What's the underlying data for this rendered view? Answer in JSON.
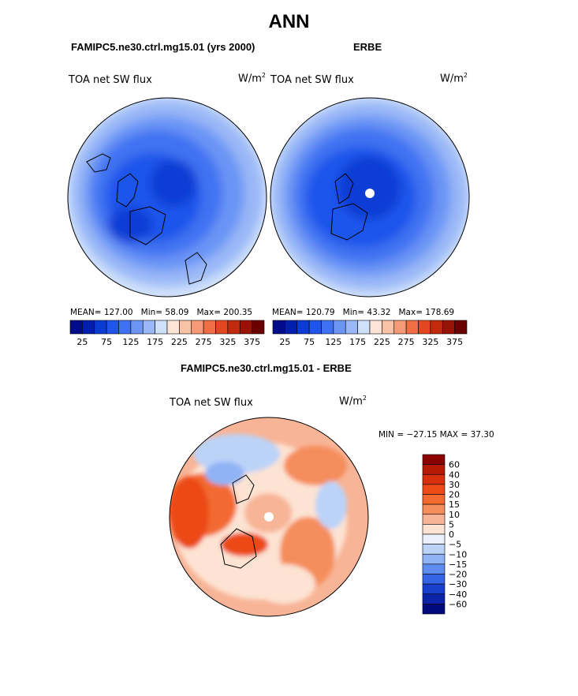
{
  "page_title": "ANN",
  "colors": {
    "ocean_base": "#7fa8f0",
    "land_line": "#000000",
    "diff_warm": "#f0703a",
    "diff_cool": "#a9c8f6"
  },
  "chart_data": [
    {
      "type": "heatmap",
      "projection": "north-polar-stereographic",
      "title": "FAMIPC5.ne30.ctrl.mg15.01 (yrs 2000)",
      "variable": "TOA net SW flux",
      "units": "W/m",
      "units_superscript": "2",
      "stats": {
        "mean_label": "MEAN=",
        "mean": "127.00",
        "min_label": "Min=",
        "min": "58.09",
        "max_label": "Max=",
        "max": "200.35"
      },
      "colorbar": {
        "levels": [
          25,
          50,
          75,
          100,
          125,
          150,
          175,
          200,
          225,
          250,
          275,
          300,
          325,
          350,
          375
        ],
        "tick_labels": [
          "25",
          "75",
          "125",
          "175",
          "225",
          "275",
          "325",
          "375"
        ],
        "colors": [
          "#000c8a",
          "#001fb0",
          "#0a3cd4",
          "#1f55ea",
          "#3f72f2",
          "#6b94f5",
          "#9ab8f7",
          "#cfe0fb",
          "#fde4d6",
          "#f9c1a6",
          "#f59a77",
          "#ef6e45",
          "#e4471f",
          "#c22a0e",
          "#9a1205",
          "#6b0000"
        ]
      }
    },
    {
      "type": "heatmap",
      "projection": "north-polar-stereographic",
      "title": "ERBE",
      "variable": "TOA net SW flux",
      "units": "W/m",
      "units_superscript": "2",
      "stats": {
        "mean_label": "MEAN=",
        "mean": "120.79",
        "min_label": "Min=",
        "min": "43.32",
        "max_label": "Max=",
        "max": "178.69"
      },
      "colorbar": {
        "levels": [
          25,
          50,
          75,
          100,
          125,
          150,
          175,
          200,
          225,
          250,
          275,
          300,
          325,
          350,
          375
        ],
        "tick_labels": [
          "25",
          "75",
          "125",
          "175",
          "225",
          "275",
          "325",
          "375"
        ],
        "colors": [
          "#000c8a",
          "#001fb0",
          "#0a3cd4",
          "#1f55ea",
          "#3f72f2",
          "#6b94f5",
          "#9ab8f7",
          "#cfe0fb",
          "#fde4d6",
          "#f9c1a6",
          "#f59a77",
          "#ef6e45",
          "#e4471f",
          "#c22a0e",
          "#9a1205",
          "#6b0000"
        ]
      }
    },
    {
      "type": "heatmap",
      "projection": "north-polar-stereographic",
      "title": "FAMIPC5.ne30.ctrl.mg15.01 - ERBE",
      "variable": "TOA net SW flux",
      "units": "W/m",
      "units_superscript": "2",
      "stats_text": "MIN = −27.15 MAX =  37.30",
      "colorbar": {
        "levels": [
          -60,
          -40,
          -30,
          -20,
          -15,
          -10,
          -5,
          0,
          5,
          10,
          15,
          20,
          30,
          40,
          60
        ],
        "tick_labels": [
          "60",
          "40",
          "30",
          "20",
          "15",
          "10",
          "5",
          "0",
          "−5",
          "−10",
          "−15",
          "−20",
          "−30",
          "−40",
          "−60"
        ],
        "colors": [
          "#8b0000",
          "#b51a05",
          "#d7300c",
          "#ec4a17",
          "#f26a30",
          "#f58d5c",
          "#f8b496",
          "#fde3d3",
          "#eaf1fd",
          "#bcd3f8",
          "#8fb3f5",
          "#5f8cf0",
          "#3564e6",
          "#1840cc",
          "#0a23a8",
          "#000a7a"
        ]
      }
    }
  ]
}
